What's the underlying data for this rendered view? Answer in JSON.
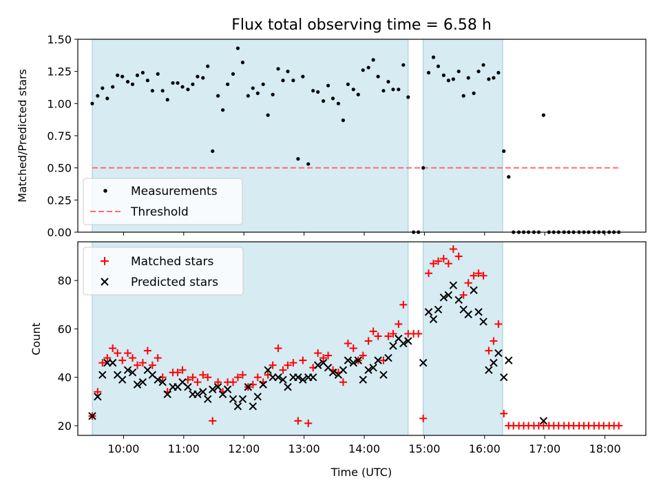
{
  "chart_data": [
    {
      "type": "scatter",
      "title": "Flux total observing time = 6.58 h",
      "xlabel": "",
      "ylabel": "Matched/Predicted stars",
      "xlim": [
        9.24,
        18.68
      ],
      "ylim": [
        0.0,
        1.5
      ],
      "yticks": [
        0.0,
        0.25,
        0.5,
        0.75,
        1.0,
        1.25,
        1.5
      ],
      "ytick_labels": [
        "0.00",
        "0.25",
        "0.50",
        "0.75",
        "1.00",
        "1.25",
        "1.50"
      ],
      "shaded_intervals": [
        [
          9.48,
          14.73
        ],
        [
          14.98,
          16.3
        ]
      ],
      "legend": [
        "Measurements",
        "Threshold"
      ],
      "legend_loc": "lower left",
      "threshold": {
        "name": "Threshold",
        "value": 0.5,
        "x_range": [
          9.48,
          18.23
        ],
        "color": "#ff6b6b"
      },
      "series": [
        {
          "name": "Measurements",
          "marker": "dot",
          "color": "#000000",
          "x": [
            9.48,
            9.57,
            9.65,
            9.73,
            9.82,
            9.9,
            9.98,
            10.07,
            10.15,
            10.23,
            10.32,
            10.4,
            10.48,
            10.57,
            10.65,
            10.73,
            10.82,
            10.9,
            10.98,
            11.07,
            11.15,
            11.23,
            11.32,
            11.4,
            11.48,
            11.57,
            11.65,
            11.73,
            11.82,
            11.9,
            11.98,
            12.07,
            12.15,
            12.23,
            12.32,
            12.4,
            12.48,
            12.57,
            12.65,
            12.73,
            12.82,
            12.9,
            12.98,
            13.07,
            13.15,
            13.23,
            13.32,
            13.4,
            13.48,
            13.57,
            13.65,
            13.73,
            13.82,
            13.9,
            13.98,
            14.07,
            14.15,
            14.23,
            14.32,
            14.4,
            14.48,
            14.57,
            14.65,
            14.73,
            14.82,
            14.9,
            14.98,
            15.07,
            15.15,
            15.23,
            15.32,
            15.4,
            15.48,
            15.57,
            15.65,
            15.73,
            15.82,
            15.9,
            15.98,
            16.07,
            16.15,
            16.23,
            16.32,
            16.4,
            16.48,
            16.57,
            16.65,
            16.73,
            16.82,
            16.9,
            16.98,
            17.07,
            17.15,
            17.23,
            17.32,
            17.4,
            17.48,
            17.57,
            17.65,
            17.73,
            17.82,
            17.9,
            17.98,
            18.07,
            18.15,
            18.23
          ],
          "y": [
            1.0,
            1.06,
            1.12,
            1.04,
            1.13,
            1.22,
            1.21,
            1.17,
            1.15,
            1.22,
            1.24,
            1.18,
            1.1,
            1.23,
            1.1,
            1.03,
            1.16,
            1.16,
            1.13,
            1.11,
            1.15,
            1.21,
            1.2,
            1.29,
            0.63,
            1.06,
            0.95,
            1.15,
            1.23,
            1.43,
            1.32,
            1.06,
            1.12,
            1.08,
            1.15,
            0.91,
            1.07,
            1.27,
            1.18,
            1.25,
            1.18,
            0.57,
            1.21,
            0.53,
            1.1,
            1.09,
            1.02,
            1.14,
            1.04,
            1.0,
            0.87,
            1.15,
            1.11,
            1.07,
            1.26,
            1.28,
            1.34,
            1.21,
            1.1,
            1.17,
            1.11,
            1.11,
            1.3,
            1.05,
            0.0,
            0.0,
            0.5,
            1.24,
            1.36,
            1.29,
            1.22,
            1.18,
            1.19,
            1.25,
            1.06,
            1.2,
            1.08,
            1.25,
            1.3,
            1.19,
            1.2,
            1.24,
            0.63,
            0.43,
            0.0,
            0.0,
            0.0,
            0.0,
            0.0,
            0.0,
            0.91,
            0.0,
            0.0,
            0.0,
            0.0,
            0.0,
            0.0,
            0.0,
            0.0,
            0.0,
            0.0,
            0.0,
            0.0,
            0.0,
            0.0,
            0.0
          ]
        }
      ]
    },
    {
      "type": "scatter",
      "title": "",
      "xlabel": "Time (UTC)",
      "ylabel": "Count",
      "xlim": [
        9.24,
        18.68
      ],
      "ylim": [
        16,
        96
      ],
      "yticks": [
        20,
        40,
        60,
        80
      ],
      "ytick_labels": [
        "20",
        "40",
        "60",
        "80"
      ],
      "xticks": [
        10,
        11,
        12,
        13,
        14,
        15,
        16,
        17,
        18
      ],
      "xtick_labels": [
        "10:00",
        "11:00",
        "12:00",
        "13:00",
        "14:00",
        "15:00",
        "16:00",
        "17:00",
        "18:00"
      ],
      "shaded_intervals": [
        [
          9.48,
          14.73
        ],
        [
          14.98,
          16.3
        ]
      ],
      "legend": [
        "Matched stars",
        "Predicted stars"
      ],
      "legend_loc": "upper left",
      "series": [
        {
          "name": "Matched stars",
          "marker": "plus",
          "color": "#ff0000",
          "x": [
            9.48,
            9.57,
            9.65,
            9.73,
            9.82,
            9.9,
            9.98,
            10.07,
            10.15,
            10.23,
            10.32,
            10.4,
            10.48,
            10.57,
            10.65,
            10.73,
            10.82,
            10.9,
            10.98,
            11.07,
            11.15,
            11.23,
            11.32,
            11.4,
            11.48,
            11.57,
            11.65,
            11.73,
            11.82,
            11.9,
            11.98,
            12.07,
            12.15,
            12.23,
            12.32,
            12.4,
            12.48,
            12.57,
            12.65,
            12.73,
            12.82,
            12.9,
            12.98,
            13.07,
            13.15,
            13.23,
            13.32,
            13.4,
            13.48,
            13.57,
            13.65,
            13.73,
            13.82,
            13.9,
            13.98,
            14.07,
            14.15,
            14.23,
            14.32,
            14.4,
            14.48,
            14.57,
            14.65,
            14.73,
            14.82,
            14.9,
            14.98,
            15.07,
            15.15,
            15.23,
            15.32,
            15.4,
            15.48,
            15.57,
            15.65,
            15.73,
            15.82,
            15.9,
            15.98,
            16.07,
            16.15,
            16.23,
            16.32,
            16.4,
            16.48,
            16.57,
            16.65,
            16.73,
            16.82,
            16.9,
            16.98,
            17.07,
            17.15,
            17.23,
            17.32,
            17.4,
            17.48,
            17.57,
            17.65,
            17.73,
            17.82,
            17.9,
            17.98,
            18.07,
            18.15,
            18.23
          ],
          "y": [
            24,
            34,
            46,
            48,
            52,
            50,
            47,
            50,
            48,
            45,
            46,
            51,
            45,
            48,
            40,
            34,
            42,
            42,
            43,
            39,
            40,
            38,
            41,
            40,
            22,
            38,
            34,
            38,
            38,
            40,
            41,
            36,
            37,
            40,
            38,
            41,
            45,
            52,
            43,
            45,
            46,
            22,
            47,
            21,
            44,
            50,
            48,
            49,
            43,
            42,
            38,
            54,
            52,
            47,
            49,
            55,
            59,
            57,
            47,
            57,
            58,
            62,
            70,
            58,
            58,
            58,
            23,
            83,
            87,
            88,
            89,
            87,
            93,
            90,
            74,
            79,
            82,
            83,
            82,
            51,
            55,
            62,
            25,
            20,
            20,
            20,
            20,
            20,
            20,
            20,
            20,
            20,
            20,
            20,
            20,
            20,
            20,
            20,
            20,
            20,
            20,
            20,
            20,
            20,
            20,
            20
          ]
        },
        {
          "name": "Predicted stars",
          "marker": "x",
          "color": "#000000",
          "x": [
            9.48,
            9.57,
            9.65,
            9.73,
            9.82,
            9.9,
            9.98,
            10.07,
            10.15,
            10.23,
            10.32,
            10.4,
            10.48,
            10.57,
            10.65,
            10.73,
            10.82,
            10.9,
            10.98,
            11.07,
            11.15,
            11.23,
            11.32,
            11.4,
            11.48,
            11.57,
            11.65,
            11.73,
            11.82,
            11.9,
            11.98,
            12.07,
            12.15,
            12.23,
            12.32,
            12.4,
            12.48,
            12.57,
            12.65,
            12.73,
            12.82,
            12.9,
            12.98,
            13.07,
            13.15,
            13.23,
            13.32,
            13.4,
            13.48,
            13.57,
            13.65,
            13.73,
            13.82,
            13.9,
            13.98,
            14.07,
            14.15,
            14.23,
            14.32,
            14.4,
            14.48,
            14.57,
            14.65,
            14.73,
            14.98,
            15.07,
            15.15,
            15.23,
            15.32,
            15.4,
            15.48,
            15.57,
            15.65,
            15.73,
            15.82,
            15.9,
            15.98,
            16.07,
            16.15,
            16.23,
            16.32,
            16.4,
            16.98
          ],
          "y": [
            24,
            32,
            41,
            46,
            46,
            41,
            39,
            43,
            42,
            37,
            38,
            43,
            41,
            39,
            38,
            33,
            36,
            36,
            38,
            36,
            33,
            33,
            34,
            31,
            35,
            36,
            33,
            35,
            31,
            28,
            31,
            36,
            28,
            32,
            37,
            43,
            40,
            40,
            39,
            36,
            40,
            40,
            39,
            40,
            40,
            45,
            46,
            44,
            42,
            41,
            43,
            47,
            46,
            47,
            39,
            43,
            44,
            47,
            41,
            48,
            53,
            56,
            54,
            55,
            46,
            67,
            64,
            68,
            73,
            74,
            78,
            72,
            68,
            66,
            76,
            67,
            63,
            43,
            46,
            50,
            40,
            47,
            22
          ]
        }
      ]
    }
  ]
}
